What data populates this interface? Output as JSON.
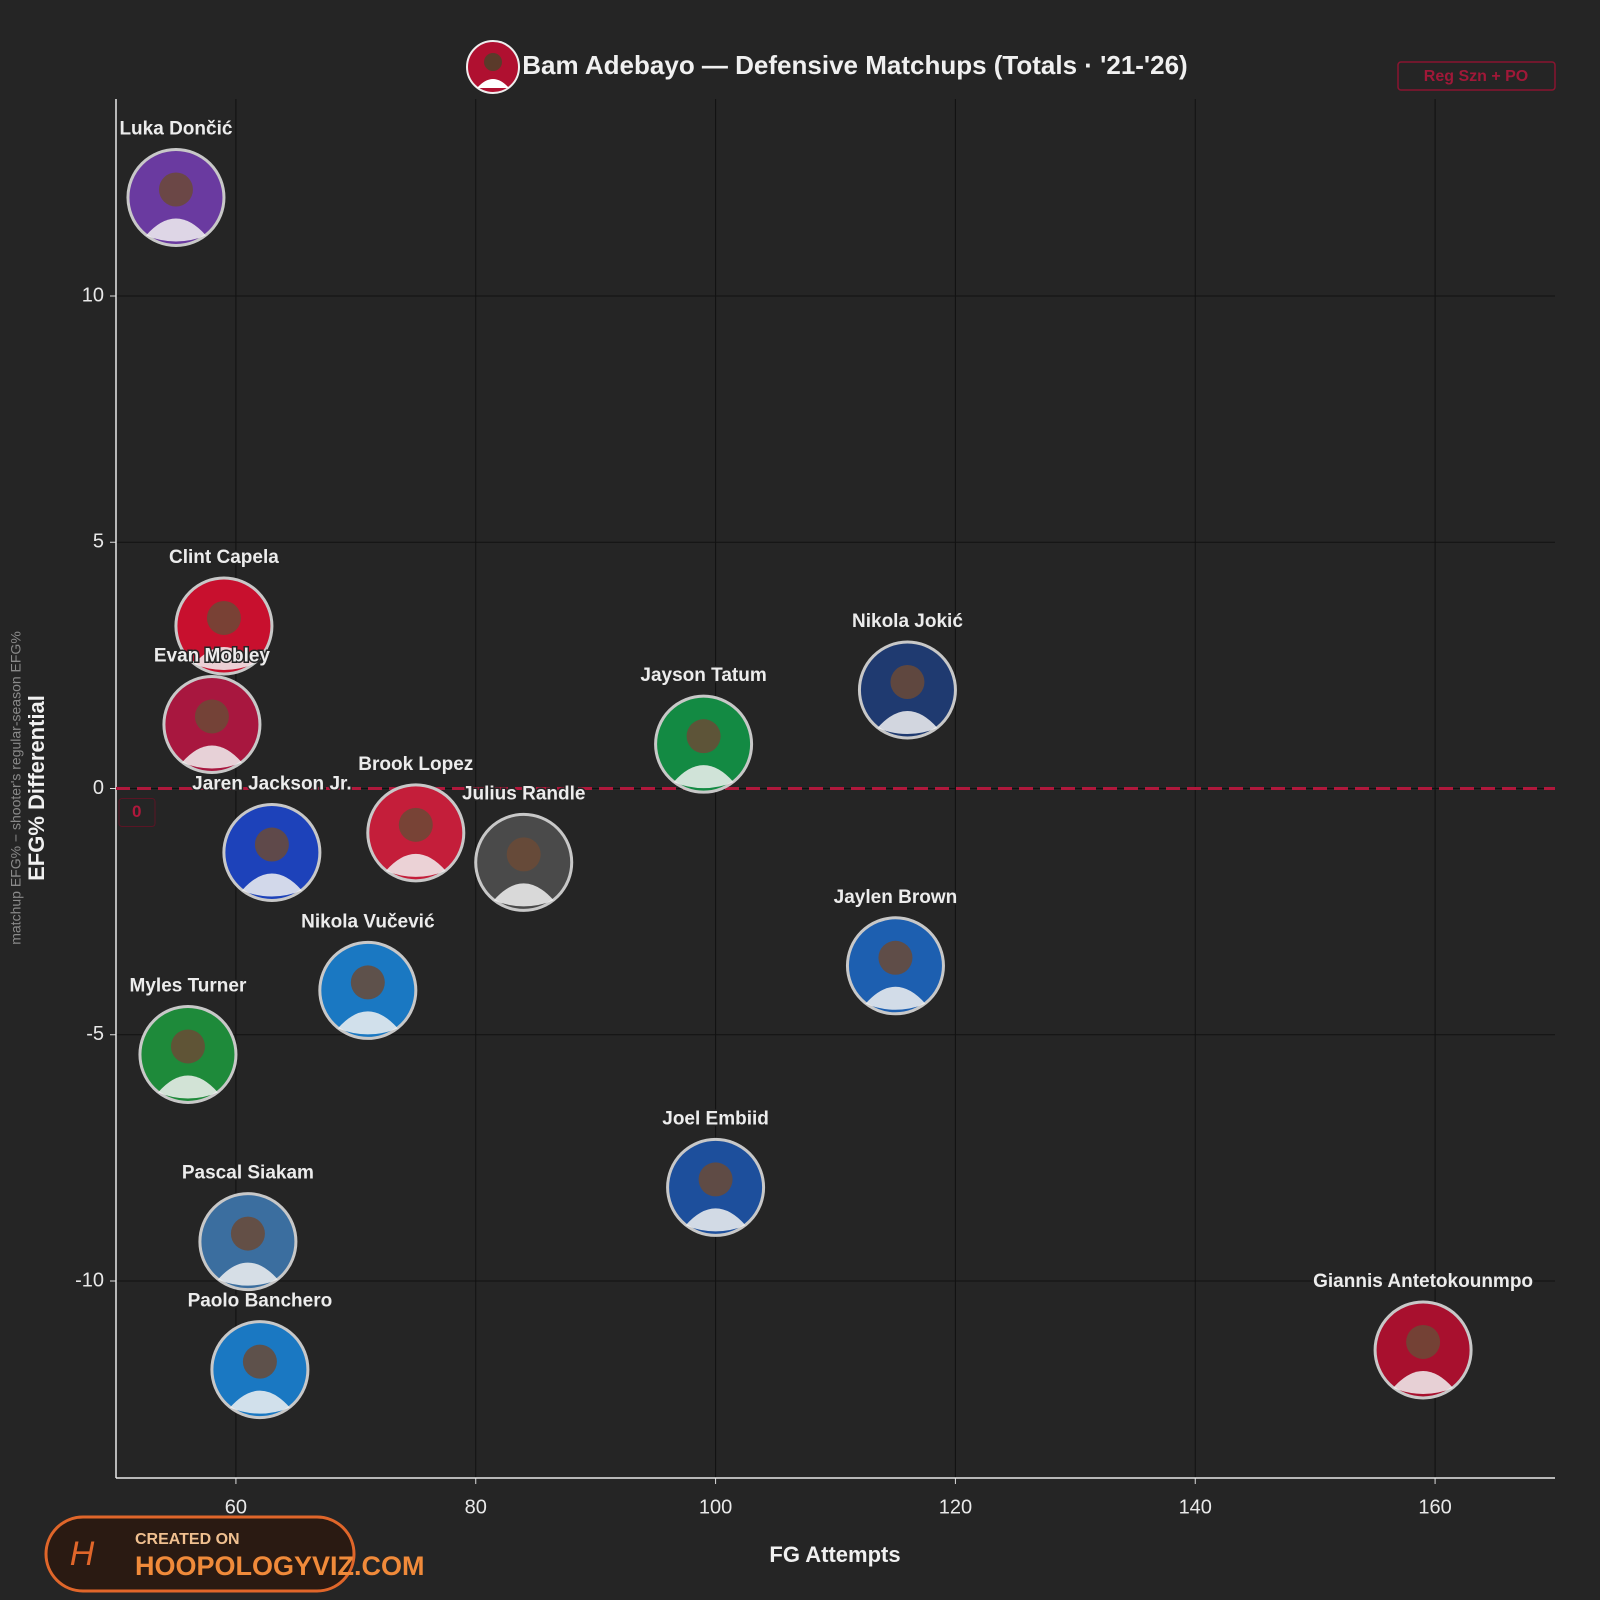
{
  "chart_data": {
    "type": "scatter",
    "title": "Bam Adebayo — Defensive Matchups (Totals · '21-'26)",
    "badge": "Reg Szn + PO",
    "y_label": "EFG% Differential",
    "y_sublabel": "matchup EFG% − shooter's regular-season EFG%",
    "x_label": "FG Attempts",
    "zero_line": 0,
    "watermark": {
      "line1": "CREATED ON",
      "line2": "HOOPOLOGYVIZ.COM"
    },
    "xlim": [
      50,
      170
    ],
    "xticks": [
      60,
      80,
      100,
      120,
      140,
      160
    ],
    "ylim": [
      -14,
      14
    ],
    "yticks": [
      -10,
      -5,
      0,
      5,
      10
    ],
    "grid": true,
    "labels": [
      "Luka Dončić",
      "Clint Capela",
      "Evan Mobley",
      "Jaren Jackson Jr.",
      "Brook Lopez",
      "Julius Randle",
      "Jayson Tatum",
      "Nikola Jokić",
      "Nikola Vučević",
      "Jaylen Brown",
      "Myles Turner",
      "Joel Embiid",
      "Pascal Siakam",
      "Paolo Banchero",
      "Giannis Antetokounmpo"
    ],
    "x": [
      55,
      59,
      58,
      63,
      75,
      84,
      99,
      116,
      71,
      115,
      56,
      100,
      61,
      62,
      159
    ],
    "values": [
      12.0,
      3.3,
      1.3,
      -1.3,
      -0.9,
      -1.5,
      0.9,
      2.0,
      -4.1,
      -3.6,
      -5.4,
      -8.1,
      -9.2,
      -11.8,
      -11.4
    ],
    "colors": [
      "#6a3aa0",
      "#c8102e",
      "#a8173f",
      "#1d42ba",
      "#c41e3a",
      "#4a4a4a",
      "#138a43",
      "#1f3a70",
      "#1a78c2",
      "#1d5fb0",
      "#1e8a3a",
      "#1d4f9c",
      "#3b6e9f",
      "#1a78c2",
      "#a8102e"
    ]
  }
}
